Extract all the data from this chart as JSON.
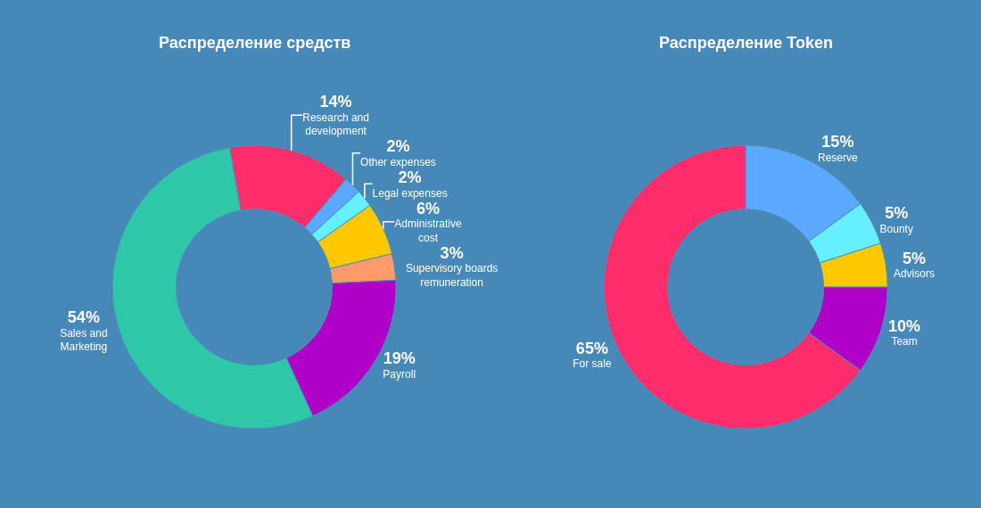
{
  "chart_data": [
    {
      "type": "donut",
      "title": "Распределение средств",
      "legend": false,
      "categories": [
        "Research and development",
        "Other expenses",
        "Legal expenses",
        "Administrative cost",
        "Supervisory boards remuneration",
        "Payroll",
        "Sales and Marketing"
      ],
      "values": [
        14,
        2,
        2,
        6,
        3,
        19,
        54
      ],
      "value_labels": [
        "14%",
        "2%",
        "2%",
        "6%",
        "3%",
        "19%",
        "54%"
      ],
      "colors": [
        "#ff2d6b",
        "#5aa8ff",
        "#66f0ff",
        "#ffc800",
        "#ff9a6a",
        "#b000c8",
        "#2ec8a8"
      ]
    },
    {
      "type": "donut",
      "title": "Распределение Token",
      "legend": false,
      "categories": [
        "For sale",
        "Reserve",
        "Bounty",
        "Advisors",
        "Team"
      ],
      "values": [
        65,
        15,
        5,
        5,
        10
      ],
      "value_labels": [
        "65%",
        "15%",
        "5%",
        "5%",
        "10%"
      ],
      "colors": [
        "#ff2d6b",
        "#5aa8ff",
        "#66f0ff",
        "#ffc800",
        "#b000c8"
      ]
    }
  ]
}
